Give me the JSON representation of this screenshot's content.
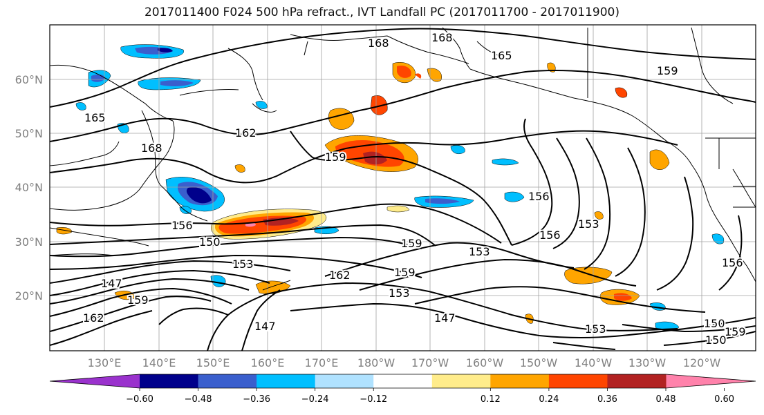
{
  "title": "2017011400 F024 500 hPa refract., IVT Landfall PC (2017011700 - 2017011900)",
  "lat_labels": [
    "60°N",
    "50°N",
    "40°N",
    "30°N",
    "20°N"
  ],
  "lon_labels": [
    "130°E",
    "140°E",
    "150°E",
    "160°E",
    "170°E",
    "180°W",
    "170°W",
    "160°W",
    "150°W",
    "140°W",
    "130°W",
    "120°W"
  ],
  "contour_labels": [
    "165",
    "168",
    "162",
    "159",
    "156",
    "150",
    "147",
    "153",
    "162",
    "159",
    "153",
    "147",
    "168",
    "165",
    "168",
    "159",
    "156",
    "153",
    "156",
    "159",
    "153",
    "150",
    "156",
    "153",
    "159",
    "150",
    "159",
    "162",
    "147"
  ],
  "colorbar": {
    "ticks": [
      "−0.60",
      "−0.48",
      "−0.36",
      "−0.24",
      "−0.12",
      "0.12",
      "0.24",
      "0.36",
      "0.48",
      "0.60"
    ],
    "colors": [
      "#9a32cd",
      "#00008b",
      "#3a5fcd",
      "#00bfff",
      "#b0e2ff",
      "#ffffff",
      "#ffec8b",
      "#ffa500",
      "#ff4500",
      "#b22222",
      "#ff82ab"
    ]
  }
}
